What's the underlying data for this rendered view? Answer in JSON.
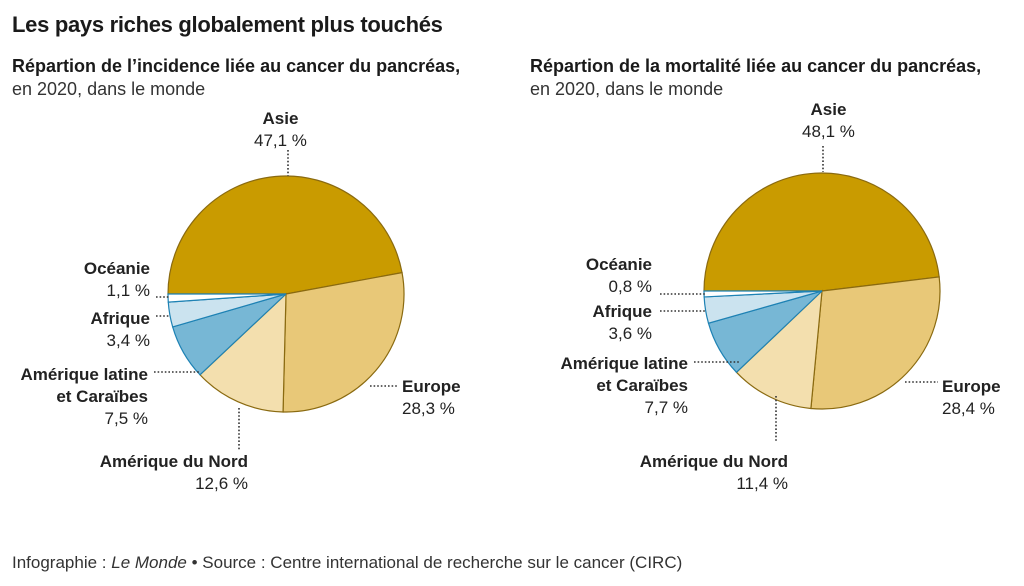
{
  "title": "Les pays riches globalement plus touchés",
  "footer": {
    "prefix": "Infographie : ",
    "brand": "Le Monde",
    "source": " • Source : Centre international de recherche sur le cancer (CIRC)"
  },
  "colors": {
    "Asie": "#c99b00",
    "Europe": "#e8c878",
    "Amérique du Nord": "#f3dfae",
    "Amérique latine et Caraïbes": "#77b7d5",
    "Afrique": "#cbe3ef",
    "Océanie": "#ffffff",
    "gold_stroke": "#8a6a10",
    "blue_stroke": "#1e82b4"
  },
  "chart_data": [
    {
      "type": "pie",
      "title": "Répartion de l’incidence liée au cancer du pancréas,",
      "subtitle": "en 2020, dans le monde",
      "start_angle": "west, clockwise",
      "slices": [
        {
          "label": "Asie",
          "value": 47.1,
          "value_label": "47,1 %"
        },
        {
          "label": "Europe",
          "value": 28.3,
          "value_label": "28,3 %"
        },
        {
          "label": "Amérique du Nord",
          "value": 12.6,
          "value_label": "12,6 %"
        },
        {
          "label": "Amérique latine et Caraïbes",
          "label_line1": "Amérique latine",
          "label_line2": "et Caraïbes",
          "value": 7.5,
          "value_label": "7,5 %"
        },
        {
          "label": "Afrique",
          "value": 3.4,
          "value_label": "3,4 %"
        },
        {
          "label": "Océanie",
          "value": 1.1,
          "value_label": "1,1 %"
        }
      ]
    },
    {
      "type": "pie",
      "title": "Répartion de la mortalité liée au cancer du pancréas,",
      "subtitle": "en 2020, dans le monde",
      "start_angle": "west, clockwise",
      "slices": [
        {
          "label": "Asie",
          "value": 48.1,
          "value_label": "48,1 %"
        },
        {
          "label": "Europe",
          "value": 28.4,
          "value_label": "28,4 %"
        },
        {
          "label": "Amérique du Nord",
          "value": 11.4,
          "value_label": "11,4 %"
        },
        {
          "label": "Amérique latine et Caraïbes",
          "label_line1": "Amérique latine",
          "label_line2": "et Caraïbes",
          "value": 7.7,
          "value_label": "7,7 %"
        },
        {
          "label": "Afrique",
          "value": 3.6,
          "value_label": "3,6 %"
        },
        {
          "label": "Océanie",
          "value": 0.8,
          "value_label": "0,8 %"
        }
      ]
    }
  ]
}
